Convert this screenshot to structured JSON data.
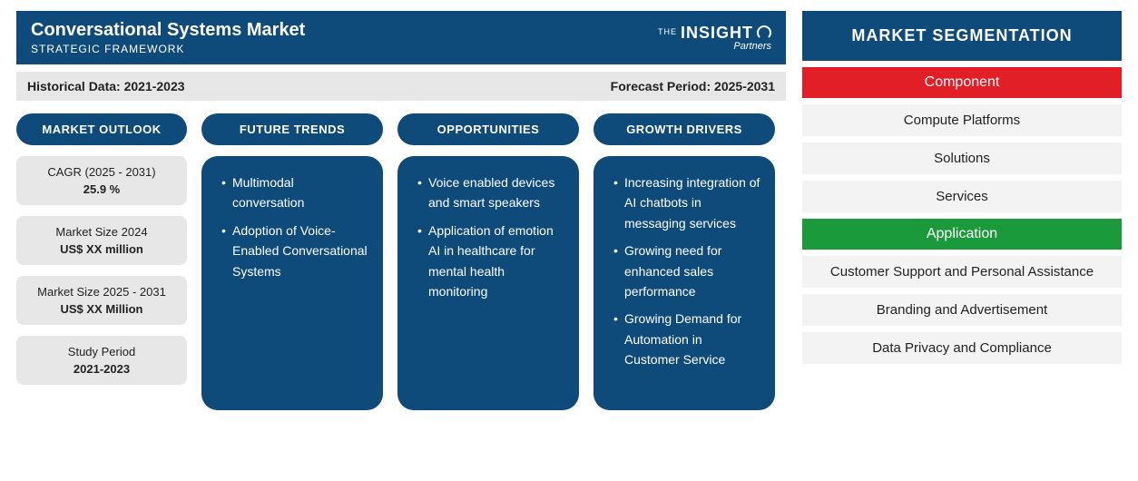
{
  "colors": {
    "navy": "#0e4a7a",
    "grey_light": "#e7e7e7",
    "grey_lighter": "#f3f3f3",
    "red": "#e21e26",
    "green": "#1a9a3b",
    "white": "#ffffff",
    "text": "#222222"
  },
  "header": {
    "title": "Conversational Systems Market",
    "subtitle": "STRATEGIC FRAMEWORK",
    "logo_the": "THE",
    "logo_insight": "INSIGHT",
    "logo_partners": "Partners"
  },
  "period": {
    "historical_label": "Historical Data:",
    "historical_value": "2021-2023",
    "forecast_label": "Forecast Period:",
    "forecast_value": "2025-2031"
  },
  "outlook": {
    "heading": "MARKET OUTLOOK",
    "stats": [
      {
        "label": "CAGR (2025 - 2031)",
        "value": "25.9 %"
      },
      {
        "label": "Market Size 2024",
        "value": "US$ XX million"
      },
      {
        "label": "Market Size 2025 - 2031",
        "value": "US$ XX Million"
      },
      {
        "label": "Study Period",
        "value": "2021-2023"
      }
    ]
  },
  "trends": {
    "heading": "FUTURE TRENDS",
    "items": [
      "Multimodal conversation",
      "Adoption of Voice-Enabled Conversational Systems"
    ]
  },
  "opportunities": {
    "heading": "OPPORTUNITIES",
    "items": [
      "Voice enabled devices and smart speakers",
      "Application of emotion AI in healthcare for mental health monitoring"
    ]
  },
  "drivers": {
    "heading": "GROWTH DRIVERS",
    "items": [
      "Increasing integration of AI chatbots in messaging services",
      "Growing need for enhanced sales performance",
      "Growing Demand for Automation in Customer Service"
    ]
  },
  "segmentation": {
    "title": "MARKET SEGMENTATION",
    "groups": [
      {
        "name": "Component",
        "color": "red",
        "items": [
          "Compute Platforms",
          "Solutions",
          "Services"
        ]
      },
      {
        "name": "Application",
        "color": "green",
        "items": [
          "Customer Support and Personal Assistance",
          "Branding and Advertisement",
          "Data Privacy and Compliance"
        ]
      }
    ]
  }
}
